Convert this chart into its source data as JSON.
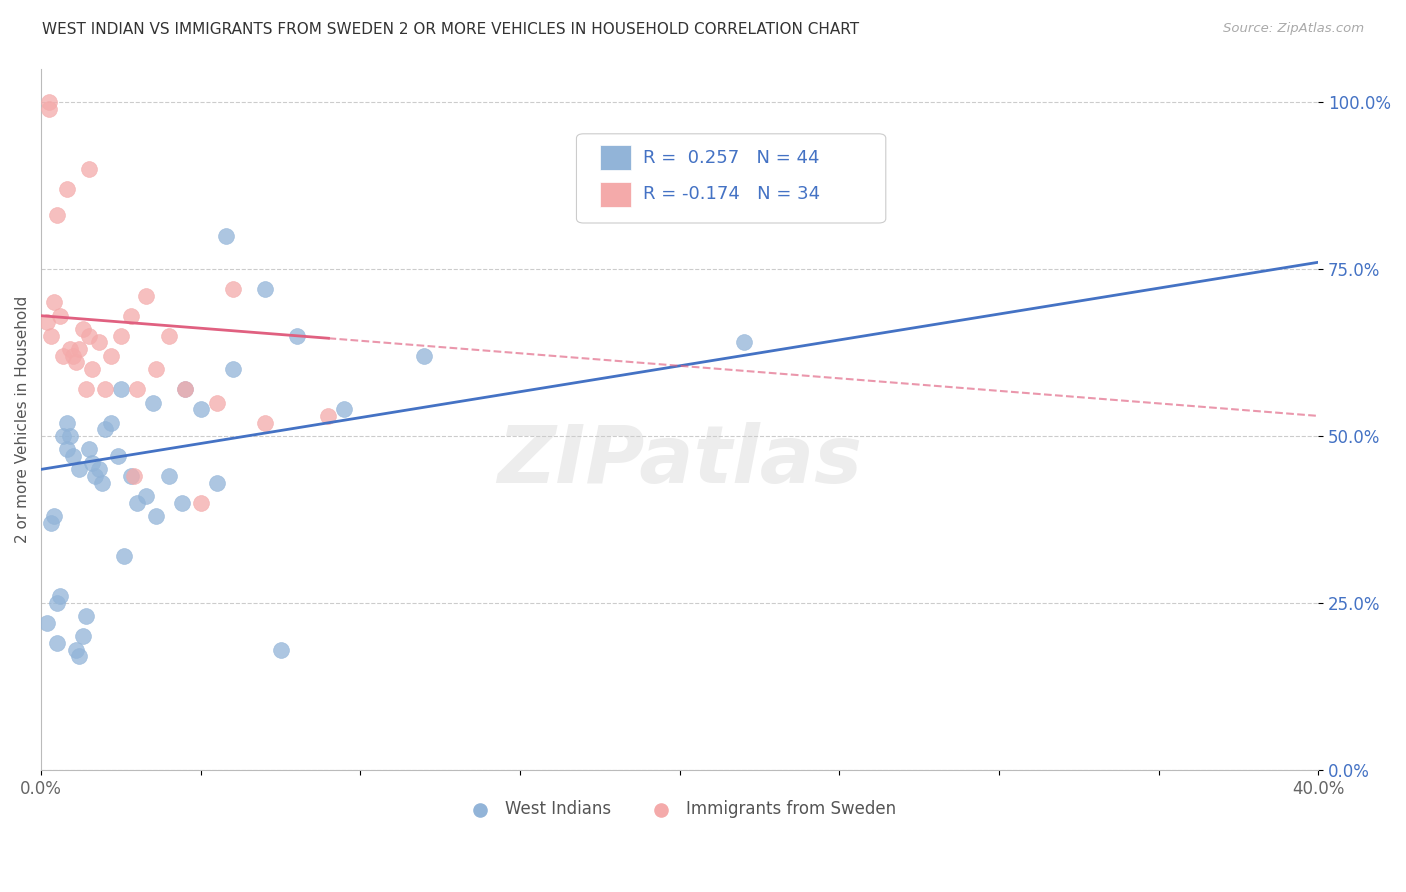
{
  "title": "WEST INDIAN VS IMMIGRANTS FROM SWEDEN 2 OR MORE VEHICLES IN HOUSEHOLD CORRELATION CHART",
  "source": "Source: ZipAtlas.com",
  "ylabel": "2 or more Vehicles in Household",
  "xmin": 0.0,
  "xmax": 40.0,
  "ymin": 0.0,
  "ymax": 105.0,
  "ytick_vals": [
    0,
    25,
    50,
    75,
    100
  ],
  "ytick_labels": [
    "0.0%",
    "25.0%",
    "50.0%",
    "75.0%",
    "100.0%"
  ],
  "xtick_positions": [
    0,
    5,
    10,
    15,
    20,
    25,
    30,
    35,
    40
  ],
  "xtick_labels": [
    "0.0%",
    "",
    "",
    "",
    "",
    "",
    "",
    "",
    "40.0%"
  ],
  "legend_label1": "West Indians",
  "legend_label2": "Immigrants from Sweden",
  "blue_color": "#92B4D8",
  "pink_color": "#F4AAAA",
  "blue_line_color": "#4472C4",
  "pink_line_color": "#E06080",
  "blue_line_y0": 45.0,
  "blue_line_y1": 76.0,
  "pink_line_y0": 68.0,
  "pink_line_y1": 53.0,
  "pink_solid_end_x": 9.0,
  "blue_x_pts": [
    0.2,
    0.3,
    0.4,
    0.5,
    0.6,
    0.7,
    0.8,
    0.9,
    1.0,
    1.1,
    1.2,
    1.3,
    1.4,
    1.5,
    1.6,
    1.7,
    1.9,
    2.0,
    2.2,
    2.4,
    2.6,
    2.8,
    3.0,
    3.3,
    3.6,
    4.0,
    4.4,
    5.0,
    5.5,
    6.0,
    7.0,
    8.0,
    9.5,
    12.0,
    22.0,
    0.5,
    0.8,
    1.2,
    1.8,
    2.5,
    3.5,
    4.5,
    5.8,
    7.5
  ],
  "blue_y_pts": [
    22,
    37,
    38,
    25,
    26,
    50,
    52,
    50,
    47,
    18,
    17,
    20,
    23,
    48,
    46,
    44,
    43,
    51,
    52,
    47,
    32,
    44,
    40,
    41,
    38,
    44,
    40,
    54,
    43,
    60,
    72,
    65,
    54,
    62,
    64,
    19,
    48,
    45,
    45,
    57,
    55,
    57,
    80,
    18
  ],
  "pink_x_pts": [
    0.2,
    0.3,
    0.4,
    0.5,
    0.6,
    0.7,
    0.8,
    0.9,
    1.0,
    1.1,
    1.2,
    1.3,
    1.4,
    1.5,
    1.6,
    1.8,
    2.0,
    2.2,
    2.5,
    2.8,
    3.0,
    3.3,
    3.6,
    4.0,
    4.5,
    5.0,
    5.5,
    6.0,
    7.0,
    1.5,
    2.9,
    0.25,
    0.25,
    9.0
  ],
  "pink_y_pts": [
    67,
    65,
    70,
    83,
    68,
    62,
    87,
    63,
    62,
    61,
    63,
    66,
    57,
    65,
    60,
    64,
    57,
    62,
    65,
    68,
    57,
    71,
    60,
    65,
    57,
    40,
    55,
    72,
    52,
    90,
    44,
    100,
    99,
    53
  ]
}
